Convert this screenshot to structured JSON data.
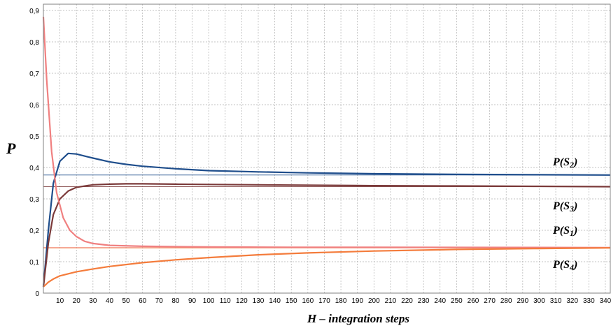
{
  "chart_data": {
    "type": "line",
    "title": "",
    "ylabel": "P",
    "xlabel": "H – integration steps",
    "xlim": [
      0,
      343
    ],
    "ylim": [
      0,
      0.92
    ],
    "grid": true,
    "x_ticks": [
      10,
      20,
      30,
      40,
      50,
      60,
      70,
      80,
      90,
      100,
      110,
      120,
      130,
      140,
      150,
      160,
      170,
      180,
      190,
      200,
      210,
      220,
      230,
      240,
      250,
      260,
      270,
      280,
      290,
      300,
      310,
      320,
      330,
      340
    ],
    "y_ticks": [
      {
        "value": 0,
        "label": "0"
      },
      {
        "value": 0.1,
        "label": "0,1"
      },
      {
        "value": 0.2,
        "label": "0,2"
      },
      {
        "value": 0.3,
        "label": "0,3"
      },
      {
        "value": 0.4,
        "label": "0,4"
      },
      {
        "value": 0.5,
        "label": "0,5"
      },
      {
        "value": 0.6,
        "label": "0,6"
      },
      {
        "value": 0.7,
        "label": "0,7"
      },
      {
        "value": 0.8,
        "label": "0,8"
      },
      {
        "value": 0.9,
        "label": "0,9"
      }
    ],
    "series": [
      {
        "name": "P(S2)",
        "color": "#1f4e8c",
        "x": [
          0,
          3,
          6,
          10,
          15,
          20,
          30,
          40,
          50,
          60,
          80,
          100,
          130,
          160,
          200,
          250,
          300,
          343
        ],
        "y": [
          0.02,
          0.2,
          0.35,
          0.42,
          0.445,
          0.443,
          0.43,
          0.418,
          0.41,
          0.404,
          0.396,
          0.39,
          0.386,
          0.383,
          0.38,
          0.378,
          0.377,
          0.376
        ],
        "steady": 0.376
      },
      {
        "name": "P(S3)",
        "color": "#7b3a3a",
        "x": [
          0,
          3,
          6,
          10,
          15,
          20,
          30,
          40,
          50,
          60,
          80,
          100,
          150,
          200,
          250,
          300,
          343
        ],
        "y": [
          0.02,
          0.16,
          0.25,
          0.3,
          0.325,
          0.337,
          0.345,
          0.347,
          0.348,
          0.348,
          0.347,
          0.346,
          0.344,
          0.342,
          0.341,
          0.34,
          0.339
        ],
        "steady": 0.339
      },
      {
        "name": "P(S1)",
        "color": "#f08080",
        "x": [
          0,
          2,
          5,
          8,
          12,
          16,
          20,
          25,
          30,
          40,
          60,
          100,
          150,
          200,
          343
        ],
        "y": [
          0.88,
          0.68,
          0.45,
          0.32,
          0.24,
          0.2,
          0.18,
          0.165,
          0.158,
          0.152,
          0.149,
          0.147,
          0.146,
          0.146,
          0.145
        ],
        "steady": 0.145
      },
      {
        "name": "P(S4)",
        "color": "#f47c3c",
        "x": [
          0,
          3,
          6,
          10,
          20,
          30,
          40,
          60,
          80,
          100,
          130,
          160,
          200,
          250,
          300,
          343
        ],
        "y": [
          0.02,
          0.035,
          0.045,
          0.055,
          0.068,
          0.077,
          0.085,
          0.097,
          0.106,
          0.113,
          0.122,
          0.128,
          0.134,
          0.139,
          0.142,
          0.144
        ],
        "steady": 0.144
      }
    ],
    "labels": {
      "s2": {
        "pre": "P(S",
        "sub": "2",
        "post": ")"
      },
      "s3": {
        "pre": "P(S",
        "sub": "3",
        "post": ")"
      },
      "s1": {
        "pre": "P(S",
        "sub": "1",
        "post": ")"
      },
      "s4": {
        "pre": "P(S",
        "sub": "4",
        "post": ")"
      }
    }
  }
}
